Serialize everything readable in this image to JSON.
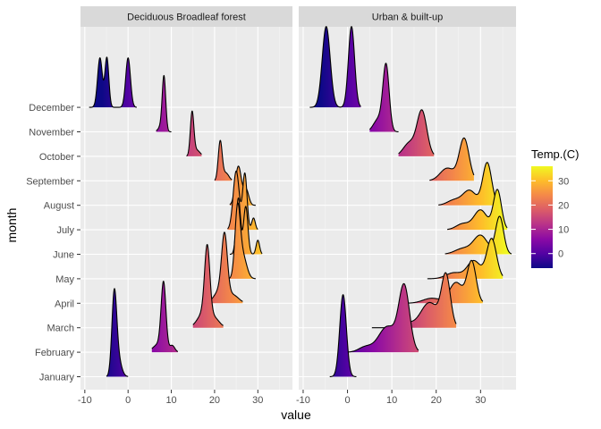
{
  "chart_data": {
    "type": "ridgeline",
    "xlabel": "value",
    "ylabel": "month",
    "xlim": [
      -11,
      38
    ],
    "x_ticks": [
      -10,
      0,
      10,
      20,
      30
    ],
    "months": [
      "January",
      "February",
      "March",
      "April",
      "May",
      "June",
      "July",
      "August",
      "September",
      "October",
      "November",
      "December"
    ],
    "legend": {
      "title": "Temp.(C)",
      "ticks": [
        0,
        10,
        20,
        30
      ],
      "range": [
        -6,
        36
      ],
      "placement": "right",
      "colors": [
        "#0d0887",
        "#5302a3",
        "#8b0aa5",
        "#b83289",
        "#db5c68",
        "#f48849",
        "#febc2a",
        "#f0f921"
      ]
    },
    "panels": [
      {
        "name": "Deciduous Broadleaf forest",
        "ridges": [
          {
            "month": "January",
            "peaks": [
              {
                "m": -3.2,
                "s": 0.55,
                "h": 3.6,
                "w": 1.0
              },
              {
                "m": -2.4,
                "s": 0.8,
                "h": 3.6,
                "w": 0.25
              }
            ],
            "range": [
              -5,
              0
            ]
          },
          {
            "month": "February",
            "peaks": [
              {
                "m": 8.2,
                "s": 0.55,
                "h": 2.9,
                "w": 1.0
              },
              {
                "m": 7.0,
                "s": 1.2,
                "h": 2.9,
                "w": 0.12
              },
              {
                "m": 10.2,
                "s": 0.6,
                "h": 2.9,
                "w": 0.1
              }
            ],
            "range": [
              5.5,
              11.5
            ]
          },
          {
            "month": "March",
            "peaks": [
              {
                "m": 18.3,
                "s": 0.6,
                "h": 3.4,
                "w": 1.0
              },
              {
                "m": 17.5,
                "s": 1.4,
                "h": 3.4,
                "w": 0.22
              },
              {
                "m": 20.0,
                "s": 1.2,
                "h": 3.4,
                "w": 0.12
              }
            ],
            "range": [
              15,
              22
            ]
          },
          {
            "month": "April",
            "peaks": [
              {
                "m": 22.3,
                "s": 0.65,
                "h": 2.9,
                "w": 1.0
              },
              {
                "m": 21.5,
                "s": 1.4,
                "h": 2.9,
                "w": 0.25
              },
              {
                "m": 24.5,
                "s": 1.2,
                "h": 2.9,
                "w": 0.12
              }
            ],
            "range": [
              19,
              26.5
            ]
          },
          {
            "month": "May",
            "peaks": [
              {
                "m": 25.3,
                "s": 0.6,
                "h": 3.1,
                "w": 1.0
              },
              {
                "m": 26.5,
                "s": 0.9,
                "h": 3.1,
                "w": 0.35
              }
            ],
            "range": [
              23,
              29.5
            ]
          },
          {
            "month": "June",
            "peaks": [
              {
                "m": 25.5,
                "s": 0.5,
                "h": 2.3,
                "w": 1.0
              },
              {
                "m": 27.2,
                "s": 0.5,
                "h": 2.3,
                "w": 0.85
              },
              {
                "m": 30.0,
                "s": 0.4,
                "h": 2.3,
                "w": 0.25
              }
            ],
            "range": [
              23.5,
              31
            ]
          },
          {
            "month": "July",
            "peaks": [
              {
                "m": 25.0,
                "s": 0.7,
                "h": 2.4,
                "w": 1.0
              },
              {
                "m": 27.0,
                "s": 0.5,
                "h": 2.4,
                "w": 0.95
              },
              {
                "m": 29.0,
                "s": 0.4,
                "h": 2.4,
                "w": 0.2
              }
            ],
            "range": [
              23,
              30
            ]
          },
          {
            "month": "August",
            "peaks": [
              {
                "m": 25.5,
                "s": 0.7,
                "h": 1.6,
                "w": 1.0
              },
              {
                "m": 27.3,
                "s": 0.6,
                "h": 1.6,
                "w": 0.4
              }
            ],
            "range": [
              23.5,
              29.5
            ]
          },
          {
            "month": "September",
            "peaks": [
              {
                "m": 21.3,
                "s": 0.45,
                "h": 1.65,
                "w": 1.0
              },
              {
                "m": 22.6,
                "s": 0.7,
                "h": 1.65,
                "w": 0.2
              }
            ],
            "range": [
              20,
              24
            ]
          },
          {
            "month": "October",
            "peaks": [
              {
                "m": 14.8,
                "s": 0.4,
                "h": 1.85,
                "w": 1.0
              },
              {
                "m": 15.8,
                "s": 0.8,
                "h": 1.85,
                "w": 0.15
              }
            ],
            "range": [
              13.5,
              17
            ]
          },
          {
            "month": "November",
            "peaks": [
              {
                "m": 8.3,
                "s": 0.4,
                "h": 2.3,
                "w": 1.0
              },
              {
                "m": 7.6,
                "s": 0.6,
                "h": 2.3,
                "w": 0.1
              }
            ],
            "range": [
              6.5,
              10
            ]
          },
          {
            "month": "December",
            "peaks": [
              {
                "m": -6.5,
                "s": 0.55,
                "h": 1.9,
                "w": 1.0
              },
              {
                "m": -4.9,
                "s": 0.45,
                "h": 1.9,
                "w": 1.0
              },
              {
                "m": 0.0,
                "s": 0.55,
                "h": 2.05,
                "w": 1.0
              }
            ],
            "range": [
              -9,
              2
            ]
          }
        ]
      },
      {
        "name": "Urban & built-up",
        "ridges": [
          {
            "month": "January",
            "peaks": [
              {
                "m": -1.0,
                "s": 0.75,
                "h": 3.35,
                "w": 1.0
              }
            ],
            "range": [
              -4,
              2
            ]
          },
          {
            "month": "February",
            "peaks": [
              {
                "m": 12.8,
                "s": 1.2,
                "h": 2.8,
                "w": 1.0
              },
              {
                "m": 9.0,
                "s": 2.0,
                "h": 2.8,
                "w": 0.4
              },
              {
                "m": 4.0,
                "s": 1.5,
                "h": 2.8,
                "w": 0.08
              }
            ],
            "range": [
              0,
              16
            ]
          },
          {
            "month": "March",
            "peaks": [
              {
                "m": 22.2,
                "s": 1.0,
                "h": 2.25,
                "w": 1.0
              },
              {
                "m": 18.5,
                "s": 2.0,
                "h": 2.25,
                "w": 0.5
              },
              {
                "m": 13.0,
                "s": 1.5,
                "h": 2.25,
                "w": 0.1
              }
            ],
            "range": [
              5.5,
              24.5
            ]
          },
          {
            "month": "April",
            "peaks": [
              {
                "m": 28.0,
                "s": 1.0,
                "h": 1.75,
                "w": 1.0
              },
              {
                "m": 24.5,
                "s": 1.5,
                "h": 1.75,
                "w": 0.5
              },
              {
                "m": 19.0,
                "s": 2.0,
                "h": 1.75,
                "w": 0.12
              }
            ],
            "range": [
              11.5,
              30.5
            ]
          },
          {
            "month": "May",
            "peaks": [
              {
                "m": 32.5,
                "s": 1.1,
                "h": 1.65,
                "w": 1.0
              },
              {
                "m": 28.5,
                "s": 1.5,
                "h": 1.65,
                "w": 0.45
              },
              {
                "m": 24.0,
                "s": 1.8,
                "h": 1.65,
                "w": 0.15
              }
            ],
            "range": [
              18,
              35
            ]
          },
          {
            "month": "June",
            "peaks": [
              {
                "m": 34.3,
                "s": 0.9,
                "h": 1.55,
                "w": 1.0
              },
              {
                "m": 30.0,
                "s": 1.6,
                "h": 1.55,
                "w": 0.5
              },
              {
                "m": 26.0,
                "s": 1.8,
                "h": 1.55,
                "w": 0.15
              }
            ],
            "range": [
              22,
              37
            ]
          },
          {
            "month": "July",
            "peaks": [
              {
                "m": 33.8,
                "s": 0.9,
                "h": 1.65,
                "w": 1.0
              },
              {
                "m": 30.0,
                "s": 1.5,
                "h": 1.65,
                "w": 0.5
              },
              {
                "m": 26.0,
                "s": 1.5,
                "h": 1.65,
                "w": 0.15
              }
            ],
            "range": [
              22.5,
              36
            ]
          },
          {
            "month": "August",
            "peaks": [
              {
                "m": 31.5,
                "s": 1.0,
                "h": 1.75,
                "w": 1.0
              },
              {
                "m": 27.5,
                "s": 1.5,
                "h": 1.75,
                "w": 0.35
              },
              {
                "m": 24.0,
                "s": 1.5,
                "h": 1.75,
                "w": 0.12
              }
            ],
            "range": [
              20.5,
              34.5
            ]
          },
          {
            "month": "September",
            "peaks": [
              {
                "m": 26.3,
                "s": 1.1,
                "h": 1.75,
                "w": 1.0
              },
              {
                "m": 22.5,
                "s": 1.6,
                "h": 1.75,
                "w": 0.3
              }
            ],
            "range": [
              18.5,
              28.5
            ]
          },
          {
            "month": "October",
            "peaks": [
              {
                "m": 16.8,
                "s": 1.1,
                "h": 1.9,
                "w": 1.0
              },
              {
                "m": 14.0,
                "s": 1.4,
                "h": 1.9,
                "w": 0.3
              }
            ],
            "range": [
              11.5,
              19.5
            ]
          },
          {
            "month": "November",
            "peaks": [
              {
                "m": 8.7,
                "s": 0.7,
                "h": 2.8,
                "w": 1.0
              },
              {
                "m": 7.0,
                "s": 1.1,
                "h": 2.8,
                "w": 0.2
              }
            ],
            "range": [
              5,
              11.5
            ]
          },
          {
            "month": "December",
            "peaks": [
              {
                "m": -4.8,
                "s": 0.9,
                "h": 3.3,
                "w": 1.0
              },
              {
                "m": 0.9,
                "s": 0.7,
                "h": 3.15,
                "w": 1.0
              }
            ],
            "range": [
              -8.5,
              3
            ]
          }
        ]
      }
    ]
  }
}
